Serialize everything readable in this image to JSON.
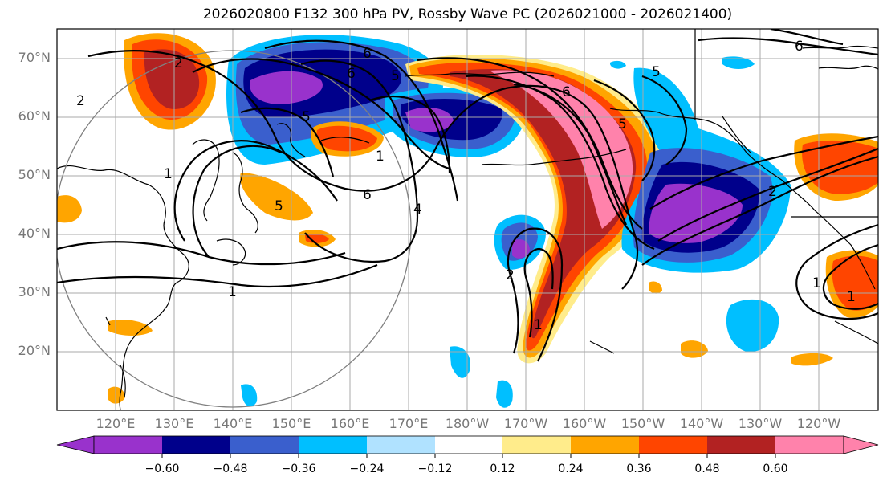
{
  "title": "2026020800 F132 300 hPa PV, Rossby Wave PC (2026021000 - 2026021400)",
  "latitude_labels": [
    "70°N",
    "60°N",
    "50°N",
    "40°N",
    "30°N",
    "20°N"
  ],
  "longitude_labels": [
    "120°E",
    "130°E",
    "140°E",
    "150°E",
    "160°E",
    "170°E",
    "180°W",
    "170°W",
    "160°W",
    "150°W",
    "140°W",
    "130°W",
    "120°W"
  ],
  "contour_labels": [
    "6",
    "5",
    "6",
    "5",
    "6",
    "5",
    "4",
    "2",
    "1",
    "1",
    "1",
    "2",
    "6",
    "5",
    "5",
    "6",
    "2",
    "2",
    "1",
    "1",
    "1"
  ],
  "colorbar": {
    "ticks": [
      "−0.60",
      "−0.48",
      "−0.36",
      "−0.24",
      "−0.12",
      "0.12",
      "0.24",
      "0.36",
      "0.48",
      "0.60"
    ],
    "colors": [
      "#9932cc",
      "#00008b",
      "#3a5fcd",
      "#00bfff",
      "#b0e2ff",
      "#ffffff",
      "#ffec8b",
      "#ffa500",
      "#ff4500",
      "#b22222",
      "#ff82ab"
    ]
  },
  "chart_data": {
    "type": "map",
    "title": "2026020800 F132 300 hPa PV, Rossby Wave PC (2026021000 - 2026021400)",
    "field_shaded": "Rossby Wave PC",
    "field_contoured": "300 hPa PV",
    "lat_range": [
      10,
      75
    ],
    "lon_range": [
      110,
      250
    ],
    "shading_levels": [
      -0.72,
      -0.6,
      -0.48,
      -0.36,
      -0.24,
      -0.12,
      0.12,
      0.24,
      0.36,
      0.48,
      0.6,
      0.72
    ]
  }
}
